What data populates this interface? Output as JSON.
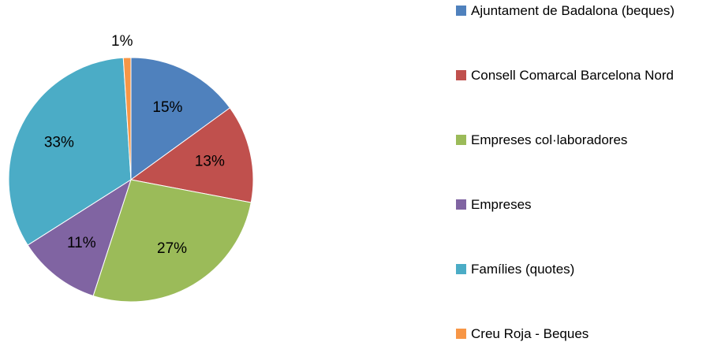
{
  "chart_data": {
    "type": "pie",
    "categories": [
      "Ajuntament de Badalona (beques)",
      "Consell Comarcal Barcelona Nord",
      "Empreses col·laboradores",
      "Empreses",
      "Famílies (quotes)",
      "Creu Roja - Beques"
    ],
    "values": [
      15,
      13,
      27,
      11,
      33,
      1
    ],
    "value_labels": [
      "15%",
      "13%",
      "27%",
      "11%",
      "33%",
      "1%"
    ],
    "colors": [
      "#4f81bd",
      "#c0504d",
      "#9bbb59",
      "#8064a2",
      "#4bacc6",
      "#f79646"
    ],
    "legend": "right"
  }
}
